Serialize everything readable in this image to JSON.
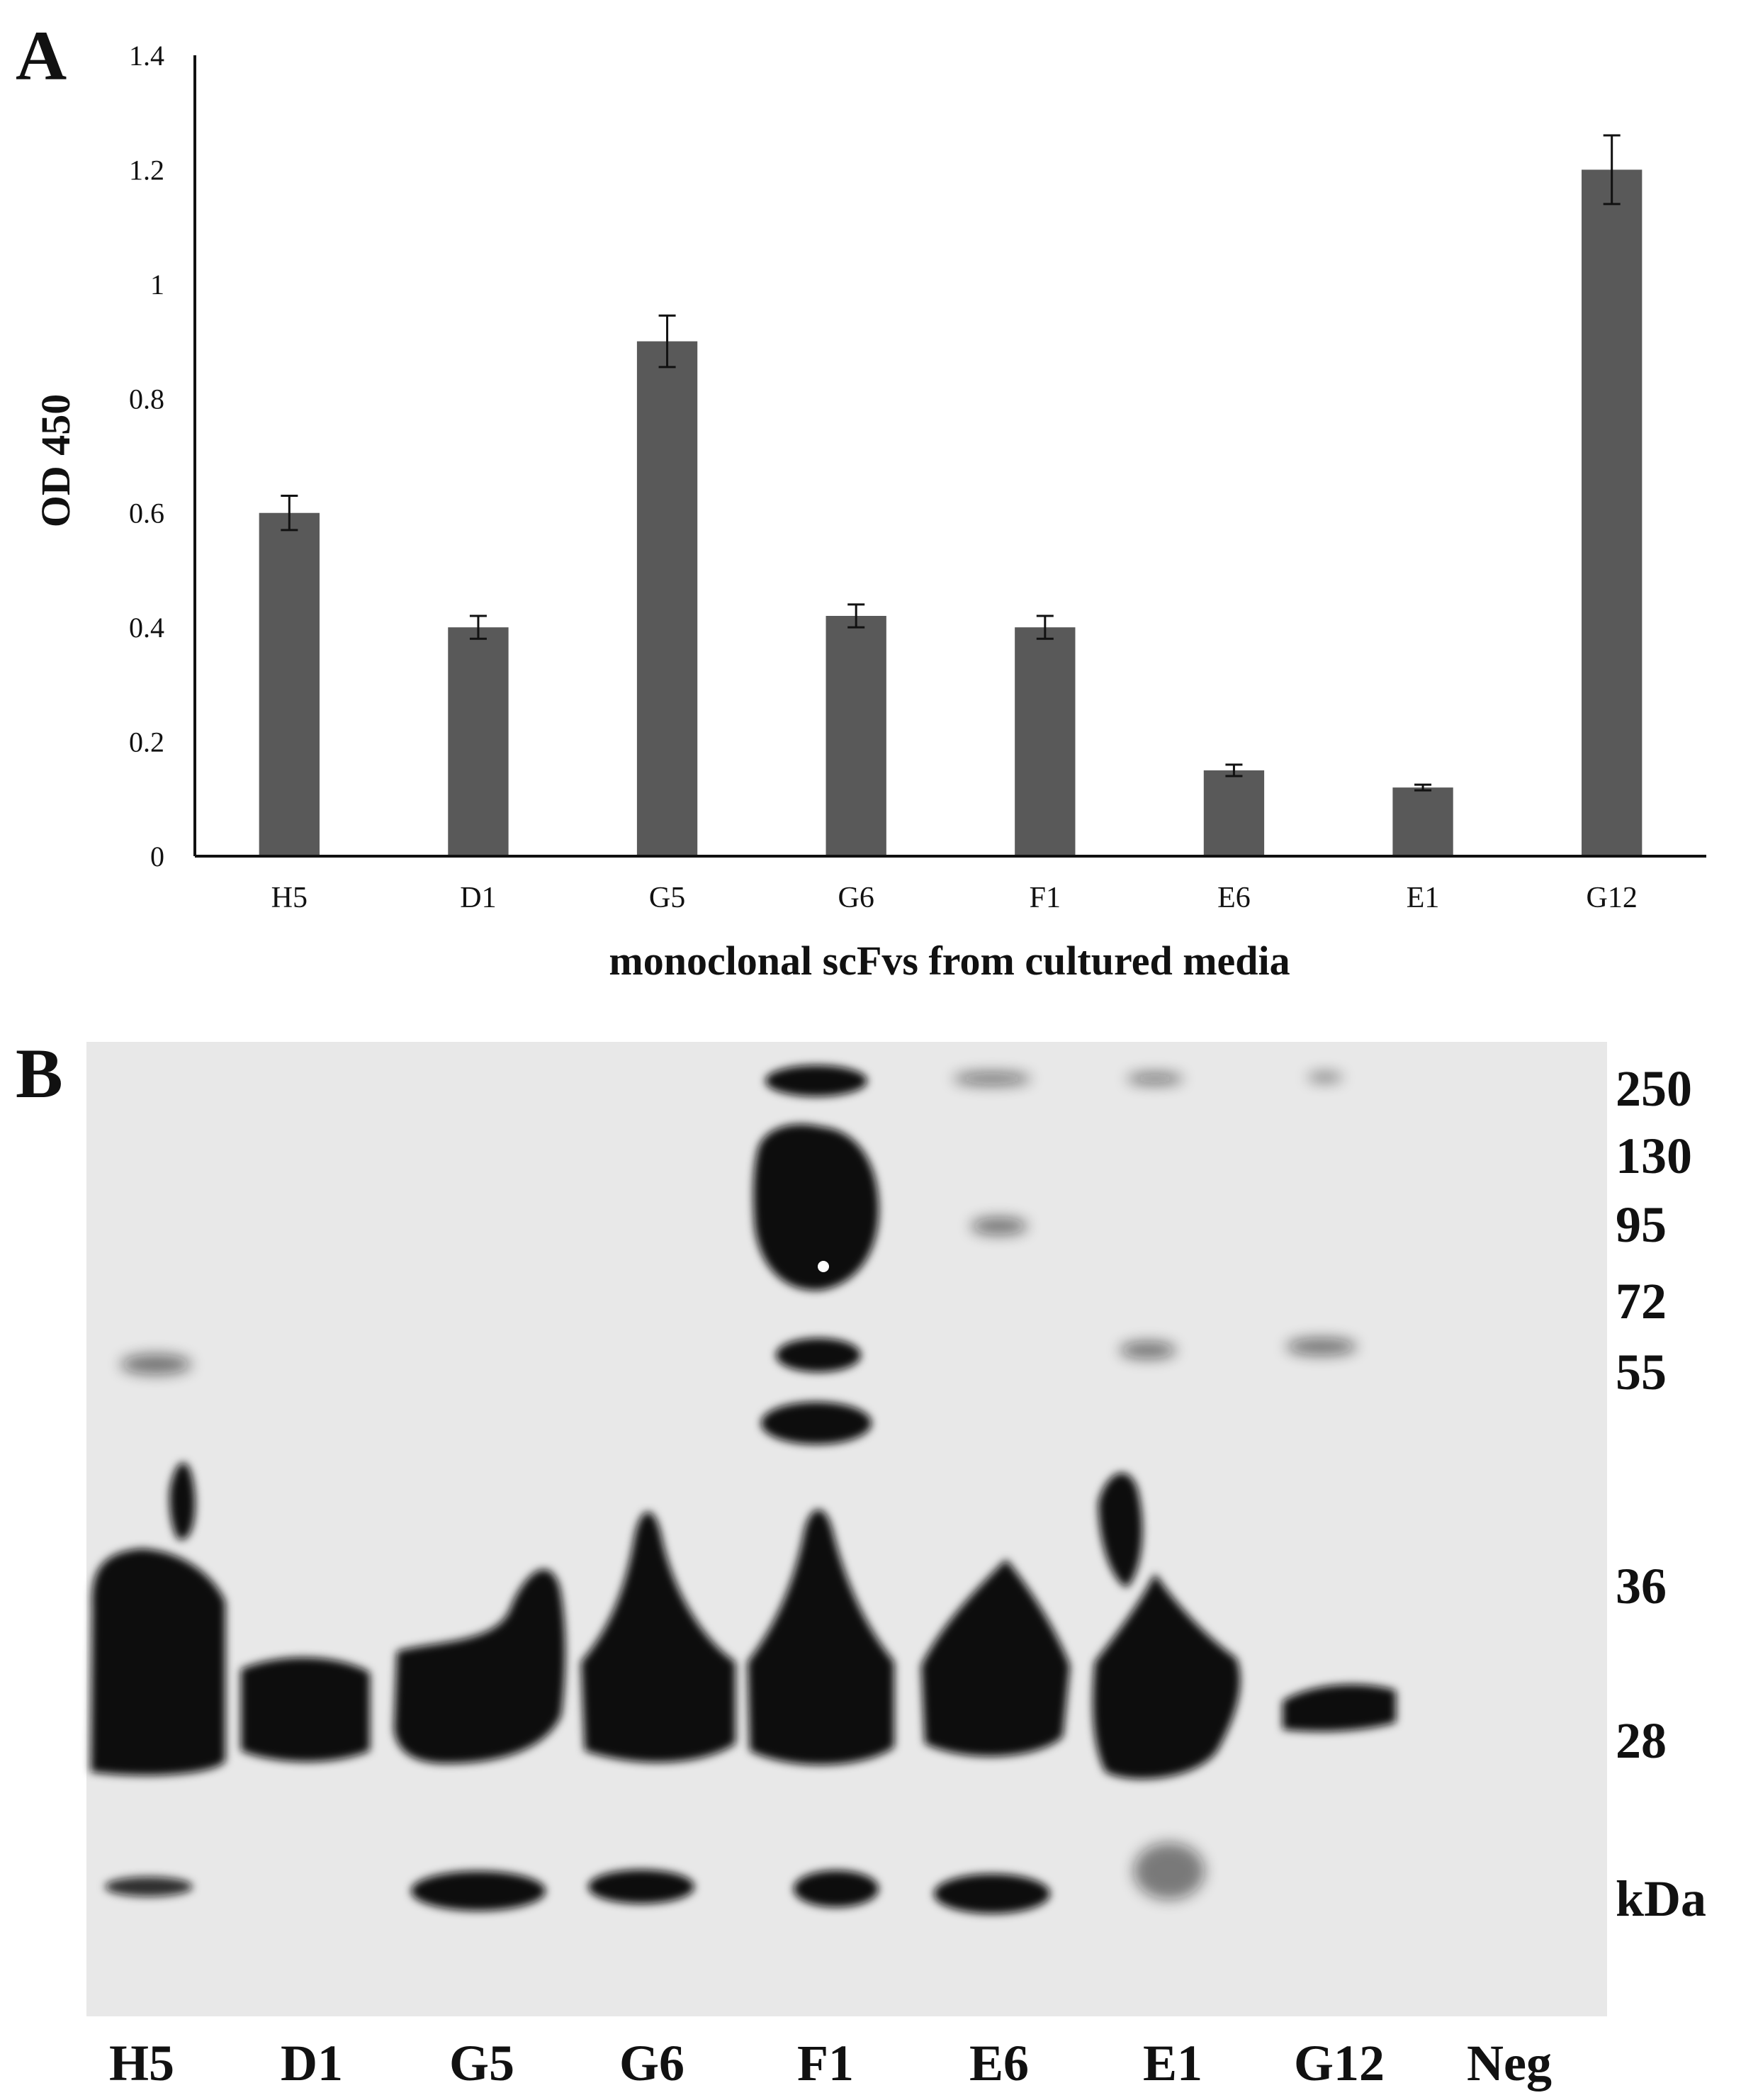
{
  "chart_data": [
    {
      "type": "bar",
      "panel": "A",
      "categories": [
        "H5",
        "D1",
        "G5",
        "G6",
        "F1",
        "E6",
        "E1",
        "G12"
      ],
      "values": [
        0.6,
        0.4,
        0.9,
        0.42,
        0.4,
        0.15,
        0.12,
        1.2
      ],
      "errors": [
        0.03,
        0.02,
        0.045,
        0.02,
        0.02,
        0.01,
        0.005,
        0.06
      ],
      "xlabel": "monoclonal scFvs from cultured media",
      "ylabel": "OD 450",
      "ylim": [
        0,
        1.4
      ],
      "yticks": [
        "0",
        "0.2",
        "0.4",
        "0.6",
        "0.8",
        "1",
        "1.2",
        "1.4"
      ],
      "grid": false,
      "bar_color": "#595959"
    },
    {
      "type": "western-blot",
      "panel": "B",
      "lanes": [
        "H5",
        "D1",
        "G5",
        "G6",
        "F1",
        "E6",
        "E1",
        "G12",
        "Neg"
      ],
      "markers": [
        "250",
        "130",
        "95",
        "72",
        "55",
        "36",
        "28",
        "kDa"
      ],
      "membrane_color": "#e8e8e8"
    }
  ]
}
